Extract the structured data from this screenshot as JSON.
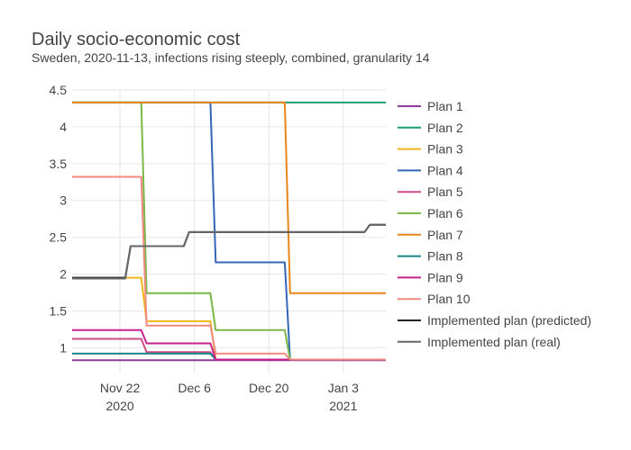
{
  "chart_data": {
    "type": "line",
    "line_shape": "step",
    "title": "Daily socio-economic cost",
    "subtitle": "Sweden, 2020-11-13, infections rising steeply, combined, granularity 14",
    "xlabel": "",
    "ylabel": "",
    "xlim": [
      "2020-11-13",
      "2021-01-11"
    ],
    "ylim": [
      0.65,
      4.5
    ],
    "grid": true,
    "legend_position": "right",
    "x_ticks": [
      {
        "date": "2020-11-22",
        "label": "Nov 22",
        "sublabel": "2020"
      },
      {
        "date": "2020-12-06",
        "label": "Dec 6",
        "sublabel": ""
      },
      {
        "date": "2020-12-20",
        "label": "Dec 20",
        "sublabel": ""
      },
      {
        "date": "2021-01-03",
        "label": "Jan 3",
        "sublabel": "2021"
      }
    ],
    "y_ticks": [
      {
        "value": 1,
        "label": "1"
      },
      {
        "value": 1.5,
        "label": "1.5"
      },
      {
        "value": 2,
        "label": "2"
      },
      {
        "value": 2.5,
        "label": "2.5"
      },
      {
        "value": 3,
        "label": "3"
      },
      {
        "value": 3.5,
        "label": "3.5"
      },
      {
        "value": 4,
        "label": "4"
      },
      {
        "value": 4.5,
        "label": "4.5"
      }
    ],
    "series": [
      {
        "name": "Plan 1",
        "color": "#8e3a9c",
        "x": [
          "2020-11-13",
          "2021-01-11"
        ],
        "y": [
          0.83,
          0.83
        ]
      },
      {
        "name": "Plan 2",
        "color": "#1a9e77",
        "x": [
          "2020-11-13",
          "2021-01-11"
        ],
        "y": [
          4.33,
          4.33
        ]
      },
      {
        "name": "Plan 3",
        "color": "#f2b51d",
        "x": [
          "2020-11-13",
          "2020-11-26",
          "2020-11-27",
          "2020-12-09",
          "2020-12-10",
          "2021-01-11"
        ],
        "y": [
          1.95,
          1.95,
          1.36,
          1.36,
          0.84,
          0.84
        ]
      },
      {
        "name": "Plan 4",
        "color": "#3366b5",
        "x": [
          "2020-11-13",
          "2020-12-09",
          "2020-12-10",
          "2020-12-23",
          "2020-12-24",
          "2021-01-11"
        ],
        "y": [
          4.33,
          4.33,
          2.16,
          2.16,
          0.84,
          0.84
        ]
      },
      {
        "name": "Plan 5",
        "color": "#cf4a86",
        "x": [
          "2020-11-13",
          "2020-11-26",
          "2020-11-27",
          "2020-12-09",
          "2020-12-10",
          "2021-01-11"
        ],
        "y": [
          1.12,
          1.12,
          0.94,
          0.94,
          0.84,
          0.84
        ]
      },
      {
        "name": "Plan 6",
        "color": "#7ab648",
        "x": [
          "2020-11-13",
          "2020-11-26",
          "2020-11-27",
          "2020-12-09",
          "2020-12-10",
          "2020-12-23",
          "2020-12-24",
          "2021-01-11"
        ],
        "y": [
          4.33,
          4.33,
          1.74,
          1.74,
          1.24,
          1.24,
          0.84,
          0.84
        ]
      },
      {
        "name": "Plan 7",
        "color": "#e8861a",
        "x": [
          "2020-11-13",
          "2020-12-23",
          "2020-12-24",
          "2021-01-11"
        ],
        "y": [
          4.33,
          4.33,
          1.74,
          1.74
        ]
      },
      {
        "name": "Plan 8",
        "color": "#17868a",
        "x": [
          "2020-11-13",
          "2020-12-09",
          "2020-12-10",
          "2021-01-11"
        ],
        "y": [
          0.92,
          0.92,
          0.84,
          0.84
        ]
      },
      {
        "name": "Plan 9",
        "color": "#c7218e",
        "x": [
          "2020-11-13",
          "2020-11-26",
          "2020-11-27",
          "2020-12-09",
          "2020-12-10",
          "2021-01-11"
        ],
        "y": [
          1.24,
          1.24,
          1.06,
          1.06,
          0.84,
          0.84
        ]
      },
      {
        "name": "Plan 10",
        "color": "#f08a80",
        "x": [
          "2020-11-13",
          "2020-11-26",
          "2020-11-27",
          "2020-12-09",
          "2020-12-10",
          "2020-12-23",
          "2020-12-24",
          "2021-01-11"
        ],
        "y": [
          3.32,
          3.32,
          1.3,
          1.3,
          0.92,
          0.92,
          0.84,
          0.84
        ]
      },
      {
        "name": "Implemented plan (predicted)",
        "color": "#222222",
        "x": [
          "2020-11-13",
          "2020-11-23",
          "2020-11-24",
          "2020-12-04",
          "2020-12-05",
          "2021-01-07",
          "2021-01-08",
          "2021-01-11"
        ],
        "y": [
          1.95,
          1.95,
          2.38,
          2.38,
          2.57,
          2.57,
          2.67,
          2.67
        ]
      },
      {
        "name": "Implemented plan (real)",
        "color": "#666666",
        "x": [
          "2020-11-13",
          "2020-11-23",
          "2020-11-24",
          "2020-12-04",
          "2020-12-05",
          "2021-01-07",
          "2021-01-08",
          "2021-01-11"
        ],
        "y": [
          1.94,
          1.94,
          2.38,
          2.38,
          2.57,
          2.57,
          2.67,
          2.67
        ]
      }
    ]
  }
}
